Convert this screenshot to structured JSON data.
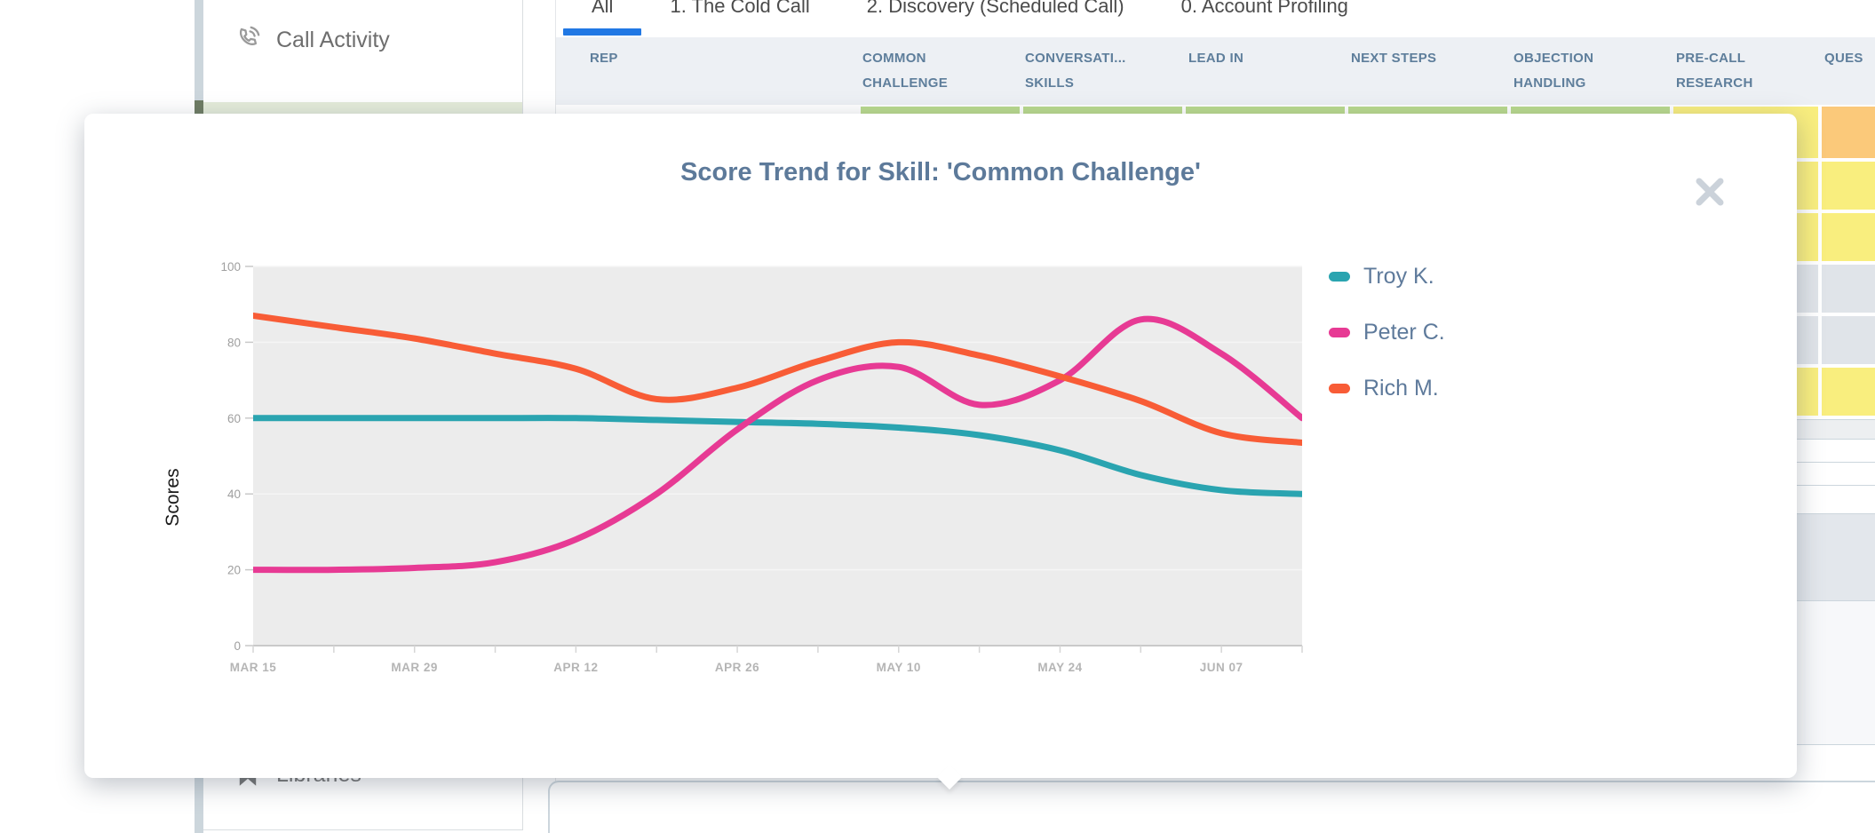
{
  "app": {
    "sidebar": {
      "items": [
        {
          "id": "call-activity",
          "label": "Call Activity",
          "icon": "phone-icon"
        },
        {
          "id": "libraries",
          "label": "Libraries",
          "icon": "bookmark-icon"
        }
      ]
    },
    "tabs": [
      {
        "label": "All",
        "active": true
      },
      {
        "label": "1. The Cold Call",
        "active": false
      },
      {
        "label": "2. Discovery (Scheduled Call)",
        "active": false
      },
      {
        "label": "0. Account Profiling",
        "active": false
      }
    ],
    "accent_blue": "#2178e4",
    "table": {
      "columns": [
        {
          "lines": [
            "REP"
          ]
        },
        {
          "lines": [
            "COMMON",
            "CHALLENGE"
          ]
        },
        {
          "lines": [
            "CONVERSATI...",
            "SKILLS"
          ]
        },
        {
          "lines": [
            "LEAD IN"
          ]
        },
        {
          "lines": [
            "NEXT STEPS"
          ]
        },
        {
          "lines": [
            "OBJECTION",
            "HANDLING"
          ]
        },
        {
          "lines": [
            "PRE-CALL",
            "RESEARCH"
          ]
        },
        {
          "lines": [
            "QUES"
          ]
        }
      ],
      "cell_palette": {
        "green": "#b9d98c",
        "yellow": "#f9ee7e",
        "orange": "#fbc97a",
        "gray": "#e0e4e9"
      },
      "score_rows": [
        {
          "cells": [
            "green",
            "green",
            "green",
            "green",
            "green",
            "yellow",
            "orange"
          ]
        },
        {
          "cells": [
            "yellow",
            "yellow",
            "yellow",
            "yellow",
            "yellow",
            "yellow",
            "yellow"
          ]
        },
        {
          "cells": [
            "yellow",
            "yellow",
            "yellow",
            "yellow",
            "yellow",
            "yellow",
            "yellow"
          ]
        },
        {
          "cells": [
            "gray",
            "gray",
            "gray",
            "gray",
            "gray",
            "gray",
            "gray"
          ]
        },
        {
          "cells": [
            "gray",
            "gray",
            "gray",
            "gray",
            "gray",
            "gray",
            "gray"
          ]
        },
        {
          "cells": [
            "yellow",
            "yellow",
            "yellow",
            "yellow",
            "yellow",
            "yellow",
            "yellow"
          ]
        }
      ]
    }
  },
  "modal": {
    "title": "Score Trend for Skill: 'Common Challenge'"
  },
  "chart_data": {
    "type": "line",
    "title": "Score Trend for Skill: 'Common Challenge'",
    "xlabel": "",
    "ylabel": "Scores",
    "ylim": [
      0,
      100
    ],
    "yticks": [
      0,
      20,
      40,
      60,
      80,
      100
    ],
    "x": [
      "MAR 15",
      "MAR 22",
      "MAR 29",
      "APR 05",
      "APR 12",
      "APR 19",
      "APR 26",
      "MAY 03",
      "MAY 10",
      "MAY 17",
      "MAY 24",
      "MAY 31",
      "JUN 07",
      "JUN 14"
    ],
    "x_tick_labels_shown": [
      "MAR 15",
      "MAR 29",
      "APR 12",
      "APR 26",
      "MAY 10",
      "MAY 24",
      "JUN 07"
    ],
    "grid": "subtle-horizontal",
    "plot_background": "#ececec",
    "legend_position": "right",
    "series": [
      {
        "name": "Troy K.",
        "color": "#2aa4b0",
        "values": [
          60,
          60,
          60,
          60,
          60,
          59.5,
          59,
          58.5,
          57.5,
          55.5,
          51.5,
          45,
          41,
          40
        ]
      },
      {
        "name": "Peter C.",
        "color": "#e73a94",
        "values": [
          20,
          20,
          20.5,
          22,
          28,
          40,
          57,
          70,
          73.5,
          63.5,
          70,
          86,
          77,
          60
        ]
      },
      {
        "name": "Rich M.",
        "color": "#f85c36",
        "values": [
          87,
          84,
          81,
          77,
          73,
          65,
          68,
          75,
          80,
          76.5,
          71,
          64.5,
          56,
          53.5
        ]
      }
    ]
  }
}
